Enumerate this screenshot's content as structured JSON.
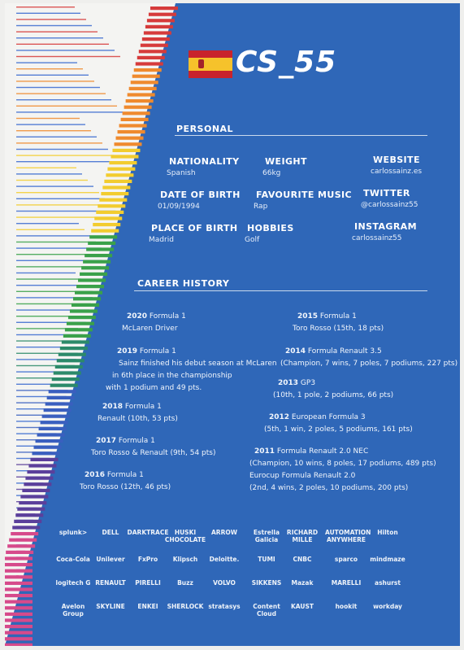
{
  "logo": {
    "text": "CS_55",
    "flag": "spain-flag-icon"
  },
  "personal": {
    "title": "PERSONAL",
    "fields": [
      {
        "label": "NATIONALITY",
        "value": "Spanish"
      },
      {
        "label": "WEIGHT",
        "value": "66kg"
      },
      {
        "label": "WEBSITE",
        "value": "carlossainz.es"
      },
      {
        "label": "DATE OF BIRTH",
        "value": "01/09/1994"
      },
      {
        "label": "FAVOURITE MUSIC",
        "value": "Rap"
      },
      {
        "label": "TWITTER",
        "value": "@carlossainz55"
      },
      {
        "label": "PLACE OF BIRTH",
        "value": "Madrid"
      },
      {
        "label": "HOBBIES",
        "value": "Golf"
      },
      {
        "label": "INSTAGRAM",
        "value": "carlossainz55"
      }
    ]
  },
  "career": {
    "title": "CAREER HISTORY",
    "left": [
      {
        "heading_bold": "2020",
        "heading_rest": " Formula 1",
        "lines": [
          "McLaren Driver"
        ]
      },
      {
        "heading_bold": "2019",
        "heading_rest": " Formula 1",
        "lines": [
          "Sainz finished his debut season at McLaren",
          "in 6th place in the championship",
          "with 1 podium and 49 pts."
        ]
      },
      {
        "heading_bold": "2018",
        "heading_rest": " Formula 1",
        "lines": [
          "Renault (10th, 53 pts)"
        ]
      },
      {
        "heading_bold": "2017",
        "heading_rest": " Formula 1",
        "lines": [
          "Toro Rosso & Renault (9th, 54 pts)"
        ]
      },
      {
        "heading_bold": "2016",
        "heading_rest": " Formula 1",
        "lines": [
          "Toro Rosso (12th, 46 pts)"
        ]
      }
    ],
    "right": [
      {
        "heading_bold": "2015",
        "heading_rest": " Formula 1",
        "lines": [
          "Toro Rosso (15th, 18 pts)"
        ]
      },
      {
        "heading_bold": "2014",
        "heading_rest": " Formula Renault 3.5",
        "lines": [
          "(Champion, 7 wins, 7 poles, 7 podiums, 227 pts)"
        ]
      },
      {
        "heading_bold": "2013",
        "heading_rest": " GP3",
        "lines": [
          "(10th, 1 pole, 2 podiums, 66 pts)"
        ]
      },
      {
        "heading_bold": "2012",
        "heading_rest": " European Formula 3",
        "lines": [
          "(5th, 1 win, 2 poles, 5 podiums, 161 pts)"
        ]
      },
      {
        "heading_bold": "2011",
        "heading_rest": " Formula Renault 2.0 NEC",
        "lines": [
          "(Champion, 10 wins, 8 poles, 17 podiums, 489 pts)",
          "Eurocup Formula Renault 2.0",
          "(2nd, 4 wins, 2 poles, 10 podiums, 200 pts)"
        ]
      }
    ]
  },
  "sponsors": [
    [
      "splunk>",
      "DELL",
      "DARKTRACE",
      "HUSKI CHOCOLATE",
      "ARROW",
      "Estrella Galicia",
      "RICHARD MILLE",
      "AUTOMATION ANYWHERE",
      "Hilton"
    ],
    [
      "Coca-Cola",
      "Unilever",
      "FxPro",
      "Klipsch",
      "Deloitte.",
      "TUMI",
      "CNBC",
      "sparco",
      "mindmaze"
    ],
    [
      "logitech G",
      "RENAULT",
      "PIRELLI",
      "Buzz",
      "VOLVO",
      "SIKKENS",
      "Mazak",
      "MARELLI",
      "ashurst"
    ],
    [
      "Avelon Group",
      "SKYLINE",
      "ENKEI",
      "SHERLOCK",
      "stratasys",
      "Content Cloud",
      "KAUST",
      "hookit",
      "workday"
    ]
  ],
  "colors": {
    "background": "#2f67b8",
    "paper": "#efefed",
    "stripe_palette": [
      "#3a6ad0",
      "#d63b3b",
      "#ef8a2e",
      "#f2cc2f",
      "#3aa14a",
      "#2c8a6a",
      "#3a5fbf",
      "#5b3f9b",
      "#d64a8b"
    ]
  }
}
